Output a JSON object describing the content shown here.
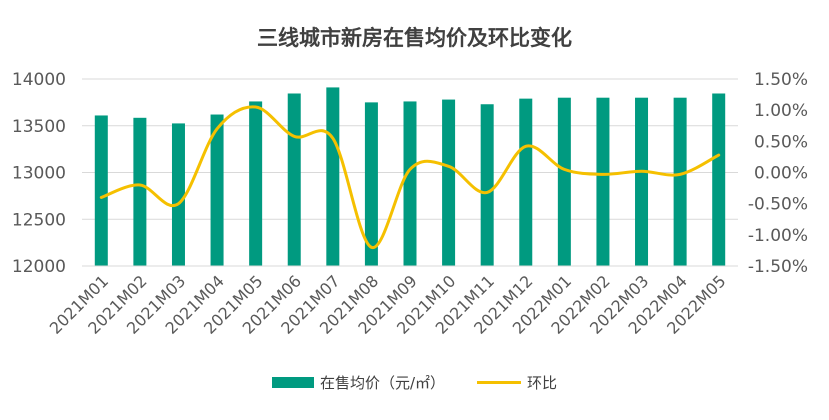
{
  "chart_data": {
    "type": "bar+line",
    "title": "三线城市新房在售均价及环比变化",
    "categories": [
      "2021M01",
      "2021M02",
      "2021M03",
      "2021M04",
      "2021M05",
      "2021M06",
      "2021M07",
      "2021M08",
      "2021M09",
      "2021M10",
      "2021M11",
      "2021M12",
      "2022M01",
      "2022M02",
      "2022M03",
      "2022M04",
      "2022M05"
    ],
    "series": [
      {
        "name": "在售均价（元/㎡）",
        "type": "bar",
        "axis": "left",
        "color": "#009A80",
        "values": [
          13610,
          13585,
          13525,
          13620,
          13760,
          13845,
          13910,
          13750,
          13760,
          13780,
          13730,
          13790,
          13800,
          13800,
          13800,
          13800,
          13845
        ]
      },
      {
        "name": "环比",
        "type": "line",
        "axis": "right",
        "color": "#F5C000",
        "values": [
          -0.4,
          -0.2,
          -0.5,
          0.7,
          1.05,
          0.58,
          0.55,
          -1.2,
          0.05,
          0.1,
          -0.32,
          0.42,
          0.05,
          -0.03,
          0.02,
          -0.03,
          0.28
        ]
      }
    ],
    "y_left": {
      "min": 12000,
      "max": 14000,
      "ticks": [
        "14000",
        "13500",
        "13000",
        "12500",
        "12000"
      ]
    },
    "y_right": {
      "min": -1.5,
      "max": 1.5,
      "ticks": [
        "1.50%",
        "1.00%",
        "0.50%",
        "0.00%",
        "-0.50%",
        "-1.00%",
        "-1.50%"
      ]
    },
    "grid": true,
    "legend": "bottom"
  }
}
